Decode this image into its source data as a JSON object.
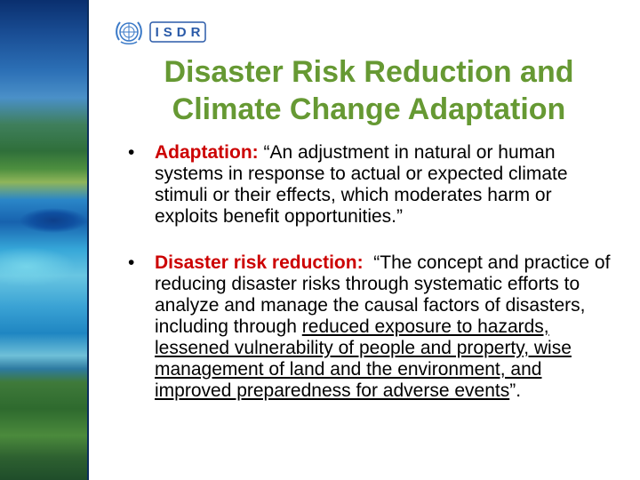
{
  "logo": {
    "text": "ISDR",
    "emblem": "un-emblem-icon"
  },
  "title": {
    "line1": "Disaster Risk Reduction and",
    "line2": "Climate Change Adaptation"
  },
  "bullets": [
    {
      "bullet": "•",
      "term": "Adaptation:",
      "text": " “An adjustment in natural or human systems in response to actual or expected climate stimuli or their effects, which moderates harm or exploits benefit opportunities.”"
    },
    {
      "bullet": "•",
      "term": "Disaster risk reduction:",
      "text": "  “The concept and practice of reducing disaster risks through systematic efforts to analyze and manage the causal factors of disasters, including through ",
      "underlined": "reduced exposure to hazards, lessened vulnerability of people and property, wise management of land and the environment, and improved preparedness for adverse events",
      "tail": "”."
    }
  ],
  "colors": {
    "title": "#669933",
    "term": "#cc0000",
    "logo": "#2a5aa8"
  }
}
